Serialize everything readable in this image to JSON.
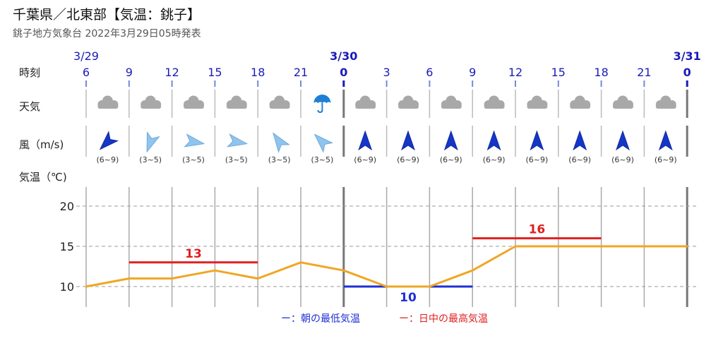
{
  "header": {
    "title": "千葉県／北東部【気温：銚子】",
    "subtitle": "銚子地方気象台 2022年3月29日05時発表"
  },
  "row_labels": {
    "time": "時刻",
    "weather": "天気",
    "wind": "風（m/s)",
    "temp": "気温（℃)"
  },
  "dates": [
    {
      "label": "3/29",
      "col": 0,
      "bold": false
    },
    {
      "label": "3/30",
      "col": 6,
      "bold": true
    },
    {
      "label": "3/31",
      "col": 14,
      "bold": true
    }
  ],
  "hours": [
    "6",
    "9",
    "12",
    "15",
    "18",
    "21",
    "0",
    "3",
    "6",
    "9",
    "12",
    "15",
    "18",
    "21",
    "0"
  ],
  "weather_icons": [
    "cloud-icon",
    "cloud-icon",
    "cloud-icon",
    "cloud-icon",
    "cloud-icon",
    "umbrella-icon",
    "cloud-icon",
    "cloud-icon",
    "cloud-icon",
    "cloud-icon",
    "cloud-icon",
    "cloud-icon",
    "cloud-icon",
    "cloud-icon"
  ],
  "wind": {
    "directions_deg": [
      225,
      200,
      100,
      100,
      325,
      315,
      0,
      0,
      0,
      0,
      0,
      0,
      0,
      0
    ],
    "strong": [
      true,
      false,
      false,
      false,
      false,
      false,
      true,
      true,
      true,
      true,
      true,
      true,
      true,
      true
    ],
    "speeds": [
      "(6~9)",
      "(3~5)",
      "(3~5)",
      "(3~5)",
      "(3~5)",
      "(3~5)",
      "(6~9)",
      "(6~9)",
      "(6~9)",
      "(6~9)",
      "(6~9)",
      "(6~9)",
      "(6~9)",
      "(6~9)"
    ]
  },
  "chart_data": {
    "type": "line",
    "x": [
      "3/29 6",
      "9",
      "12",
      "15",
      "18",
      "21",
      "3/30 0",
      "3",
      "6",
      "9",
      "12",
      "15",
      "18",
      "21",
      "3/31 0"
    ],
    "series": [
      {
        "values": [
          10,
          11,
          11,
          12,
          11,
          13,
          12,
          10,
          10,
          12,
          15,
          15,
          15,
          15,
          15
        ]
      }
    ],
    "ylim": [
      8,
      22
    ],
    "yticks": [
      10,
      15,
      20
    ],
    "grid": true,
    "max_temps": [
      {
        "value": 13,
        "label": "13",
        "from_col": 1,
        "to_col": 4
      },
      {
        "value": 16,
        "label": "16",
        "from_col": 9,
        "to_col": 12
      }
    ],
    "min_temps": [
      {
        "value": 10,
        "label": "10",
        "from_col": 6,
        "to_col": 9
      }
    ],
    "colors": {
      "line": "#f0a623",
      "max": "#e02020",
      "min": "#1f2fd6",
      "grid": "#999999"
    }
  },
  "legend": {
    "min_label": "ー：朝の最低気温",
    "max_label": "ー：日中の最高気温"
  }
}
